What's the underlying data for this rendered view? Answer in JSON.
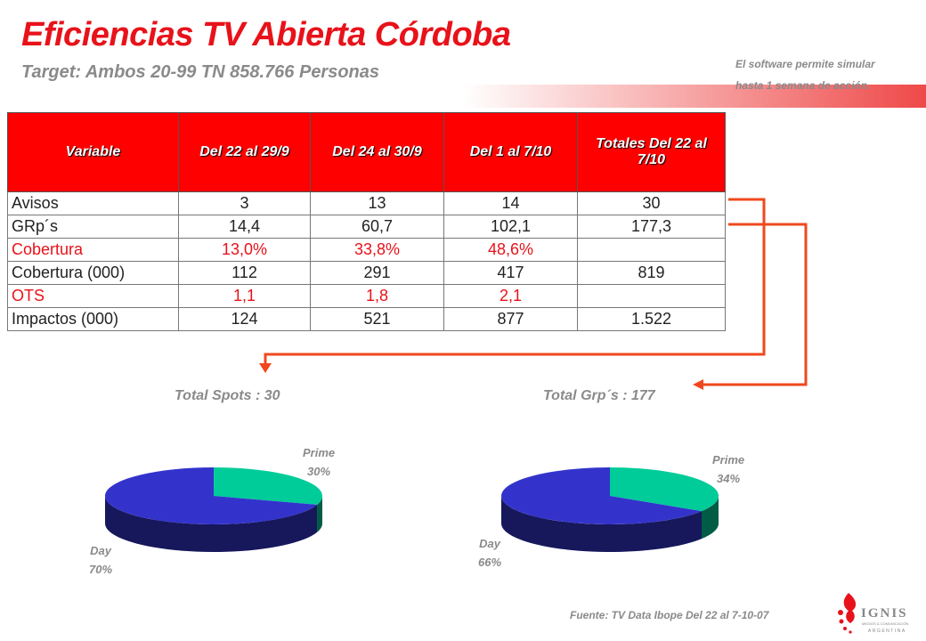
{
  "header": {
    "title": "Eficiencias TV Abierta Córdoba",
    "subtitle": "Target: Ambos 20-99 TN 858.766 Personas",
    "note_line1": "El software permite simular",
    "note_line2": "hasta 1 semana de acción."
  },
  "table": {
    "columns": [
      "Variable",
      "Del 22 al 29/9",
      "Del 24 al 30/9",
      "Del 1 al 7/10",
      "Totales Del 22 al 7/10"
    ],
    "rows": [
      {
        "label": "Avisos",
        "values": [
          "3",
          "13",
          "14",
          "30"
        ]
      },
      {
        "label": "GRp´s",
        "values": [
          "14,4",
          "60,7",
          "102,1",
          "177,3"
        ]
      },
      {
        "label": "Cobertura",
        "values": [
          "13,0%",
          "33,8%",
          "48,6%",
          ""
        ]
      },
      {
        "label": "Cobertura (000)",
        "values": [
          "112",
          "291",
          "417",
          "819"
        ]
      },
      {
        "label": "OTS",
        "values": [
          "1,1",
          "1,8",
          "2,1",
          ""
        ]
      },
      {
        "label": "Impactos (000)",
        "values": [
          "124",
          "521",
          "877",
          "1.522"
        ]
      }
    ],
    "highlight_color": "#e8121a",
    "header_color": "#ff0000"
  },
  "chart_data": [
    {
      "type": "pie",
      "title": "Total Spots : 30",
      "categories": [
        "Prime",
        "Day"
      ],
      "values": [
        30,
        70
      ],
      "labels": [
        "30%",
        "70%"
      ],
      "colors": [
        "#00cc99",
        "#3333cc"
      ]
    },
    {
      "type": "pie",
      "title": "Total Grp´s : 177",
      "categories": [
        "Prime",
        "Day"
      ],
      "values": [
        34,
        66
      ],
      "labels": [
        "34%",
        "66%"
      ],
      "colors": [
        "#00cc99",
        "#3333cc"
      ]
    }
  ],
  "footer": {
    "source": "Fuente: TV Data Ibope Del 22  al  7-10-07",
    "logo_text": "IGNIS",
    "logo_sub": "MEDIOS & COMUNICACIÓN",
    "logo_country": "ARGENTINA"
  }
}
